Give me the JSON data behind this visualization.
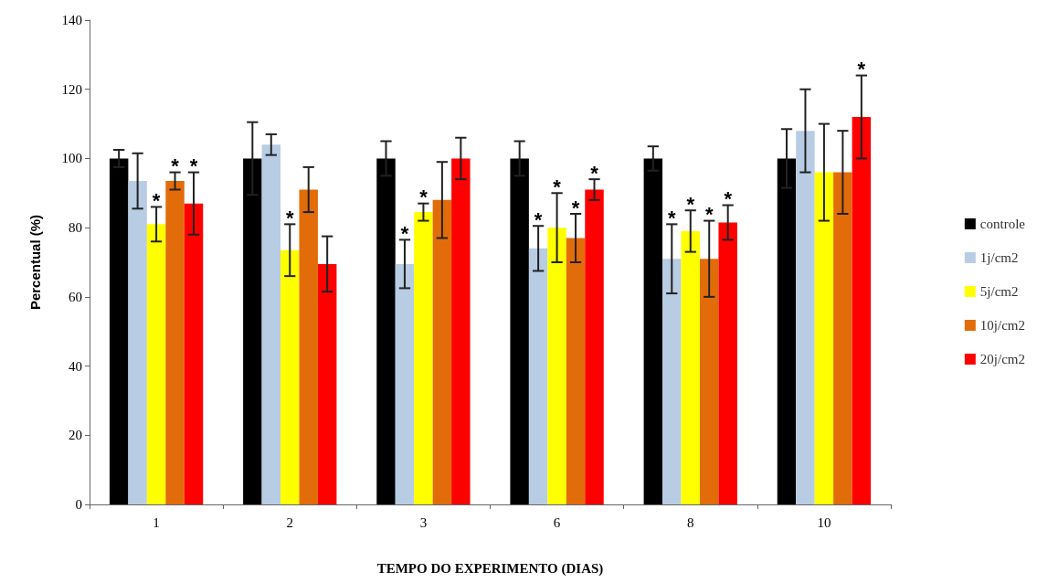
{
  "chart_data": {
    "type": "bar",
    "xlabel": "TEMPO DO EXPERIMENTO (DIAS)",
    "ylabel": "Percentual (%)",
    "categories": [
      "1",
      "2",
      "3",
      "6",
      "8",
      "10"
    ],
    "ylim": [
      0,
      140
    ],
    "yticks": [
      0,
      20,
      40,
      60,
      80,
      100,
      120,
      140
    ],
    "grid": false,
    "legend": "right",
    "series": [
      {
        "name": "controle",
        "color": "#000000",
        "values": [
          100,
          100,
          100,
          100,
          100,
          100
        ],
        "errors": [
          2.5,
          10.5,
          5,
          5,
          3.5,
          8.5
        ],
        "value_labels": [
          null,
          null,
          null,
          null,
          null,
          null
        ]
      },
      {
        "name": "1j/cm2",
        "color": "#b8cce4",
        "values": [
          93.5,
          104,
          69.5,
          74,
          71,
          108
        ],
        "errors": [
          8,
          3,
          7,
          6.5,
          10,
          12
        ],
        "value_labels": [
          null,
          null,
          "*",
          "*",
          "*",
          null
        ]
      },
      {
        "name": "5j/cm2",
        "color": "#ffff00",
        "values": [
          81,
          73.5,
          84.5,
          80,
          79,
          96
        ],
        "errors": [
          5,
          7.5,
          2.5,
          10,
          6,
          14
        ],
        "value_labels": [
          "*",
          "*",
          "*",
          "*",
          "*",
          null
        ]
      },
      {
        "name": "10j/cm2",
        "color": "#e36c0a",
        "values": [
          93.5,
          91,
          88,
          77,
          71,
          96
        ],
        "errors": [
          2.5,
          6.5,
          11,
          7,
          11,
          12
        ],
        "value_labels": [
          "*",
          null,
          null,
          "*",
          "*",
          null
        ]
      },
      {
        "name": "20j/cm2",
        "color": "#ff0000",
        "values": [
          87,
          69.5,
          100,
          91,
          81.5,
          112
        ],
        "errors": [
          9,
          8,
          6,
          3,
          5,
          12
        ],
        "value_labels": [
          "*",
          null,
          null,
          "*",
          "*",
          "*"
        ]
      }
    ]
  }
}
